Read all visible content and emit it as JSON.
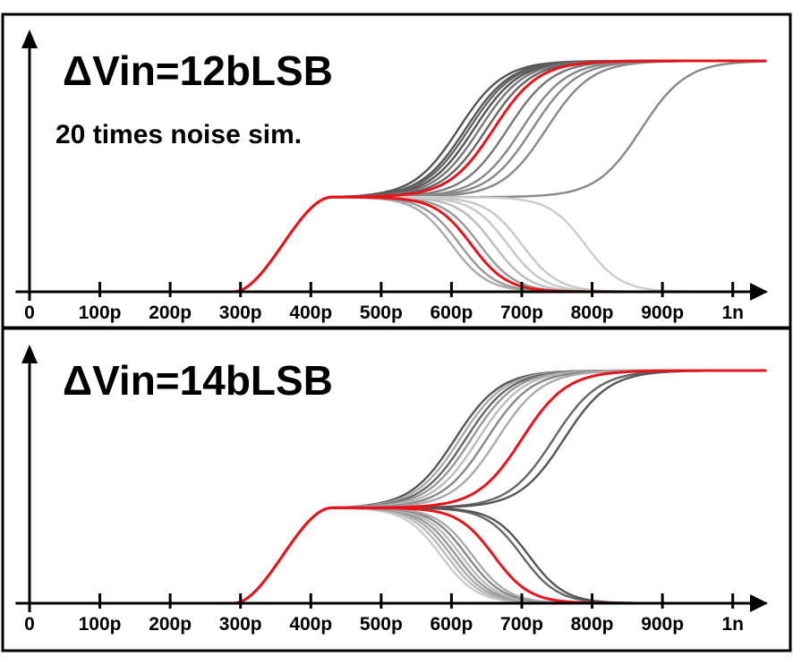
{
  "chart_data": [
    {
      "type": "line",
      "title": "ΔVin=12bLSB",
      "annotation": "20 times noise sim.",
      "xlabel": "",
      "ylabel": "",
      "x_ticks": [
        "0",
        "100p",
        "200p",
        "300p",
        "400p",
        "500p",
        "600p",
        "700p",
        "800p",
        "900p",
        "1n"
      ],
      "xlim_ps": [
        0,
        1050
      ],
      "ylim": [
        0,
        1
      ],
      "grid": false,
      "legend": "none",
      "common_rise": {
        "start_ps": 290,
        "settle_ps": 430,
        "plateau_level": 0.41
      },
      "colors": {
        "highlight": "#e8141b",
        "dark_gray": "#555555",
        "mid_gray": "#8a8a8a",
        "light_gray": "#c8c8c8"
      },
      "series": [
        {
          "direction": "up",
          "t50_ps": 610,
          "color": "#555555"
        },
        {
          "direction": "up",
          "t50_ps": 620,
          "color": "#555555"
        },
        {
          "direction": "up",
          "t50_ps": 625,
          "color": "#666666"
        },
        {
          "direction": "up",
          "t50_ps": 632,
          "color": "#555555"
        },
        {
          "direction": "up",
          "t50_ps": 640,
          "color": "#777777"
        },
        {
          "direction": "up",
          "t50_ps": 650,
          "color": "#666666"
        },
        {
          "direction": "up",
          "t50_ps": 660,
          "color": "#e8141b",
          "highlight": true
        },
        {
          "direction": "up",
          "t50_ps": 680,
          "color": "#777777"
        },
        {
          "direction": "up",
          "t50_ps": 700,
          "color": "#888888"
        },
        {
          "direction": "up",
          "t50_ps": 715,
          "color": "#888888"
        },
        {
          "direction": "up",
          "t50_ps": 735,
          "color": "#888888"
        },
        {
          "direction": "up",
          "t50_ps": 870,
          "color": "#888888"
        },
        {
          "direction": "down",
          "t50_ps": 600,
          "color": "#aaaaaa"
        },
        {
          "direction": "down",
          "t50_ps": 612,
          "color": "#999999"
        },
        {
          "direction": "down",
          "t50_ps": 628,
          "color": "#e8141b",
          "highlight": true
        },
        {
          "direction": "down",
          "t50_ps": 640,
          "color": "#999999"
        },
        {
          "direction": "down",
          "t50_ps": 660,
          "color": "#bbbbbb"
        },
        {
          "direction": "down",
          "t50_ps": 680,
          "color": "#c8c8c8"
        },
        {
          "direction": "down",
          "t50_ps": 700,
          "color": "#c8c8c8"
        },
        {
          "direction": "down",
          "t50_ps": 790,
          "color": "#cccccc"
        }
      ]
    },
    {
      "type": "line",
      "title": "ΔVin=14bLSB",
      "xlabel": "",
      "ylabel": "",
      "x_ticks": [
        "0",
        "100p",
        "200p",
        "300p",
        "400p",
        "500p",
        "600p",
        "700p",
        "800p",
        "900p",
        "1n"
      ],
      "xlim_ps": [
        0,
        1050
      ],
      "ylim": [
        0,
        1
      ],
      "grid": false,
      "legend": "none",
      "common_rise": {
        "start_ps": 290,
        "settle_ps": 430,
        "plateau_level": 0.41
      },
      "colors": {
        "highlight": "#e8141b",
        "dark_gray": "#555555",
        "mid_gray": "#8a8a8a",
        "light_gray": "#c8c8c8"
      },
      "series": [
        {
          "direction": "up",
          "t50_ps": 605,
          "color": "#555555"
        },
        {
          "direction": "up",
          "t50_ps": 612,
          "color": "#aaaaaa"
        },
        {
          "direction": "up",
          "t50_ps": 620,
          "color": "#666666"
        },
        {
          "direction": "up",
          "t50_ps": 628,
          "color": "#999999"
        },
        {
          "direction": "up",
          "t50_ps": 638,
          "color": "#bbbbbb"
        },
        {
          "direction": "up",
          "t50_ps": 650,
          "color": "#888888"
        },
        {
          "direction": "up",
          "t50_ps": 665,
          "color": "#aaaaaa"
        },
        {
          "direction": "up",
          "t50_ps": 700,
          "color": "#e8141b",
          "highlight": true
        },
        {
          "direction": "up",
          "t50_ps": 745,
          "color": "#666666"
        },
        {
          "direction": "up",
          "t50_ps": 760,
          "color": "#555555"
        },
        {
          "direction": "down",
          "t50_ps": 585,
          "color": "#cccccc"
        },
        {
          "direction": "down",
          "t50_ps": 593,
          "color": "#bbbbbb"
        },
        {
          "direction": "down",
          "t50_ps": 600,
          "color": "#aaaaaa"
        },
        {
          "direction": "down",
          "t50_ps": 607,
          "color": "#999999"
        },
        {
          "direction": "down",
          "t50_ps": 614,
          "color": "#bbbbbb"
        },
        {
          "direction": "down",
          "t50_ps": 622,
          "color": "#888888"
        },
        {
          "direction": "down",
          "t50_ps": 630,
          "color": "#aaaaaa"
        },
        {
          "direction": "down",
          "t50_ps": 660,
          "color": "#e8141b",
          "highlight": true
        },
        {
          "direction": "down",
          "t50_ps": 700,
          "color": "#666666"
        },
        {
          "direction": "down",
          "t50_ps": 710,
          "color": "#555555"
        }
      ]
    }
  ]
}
